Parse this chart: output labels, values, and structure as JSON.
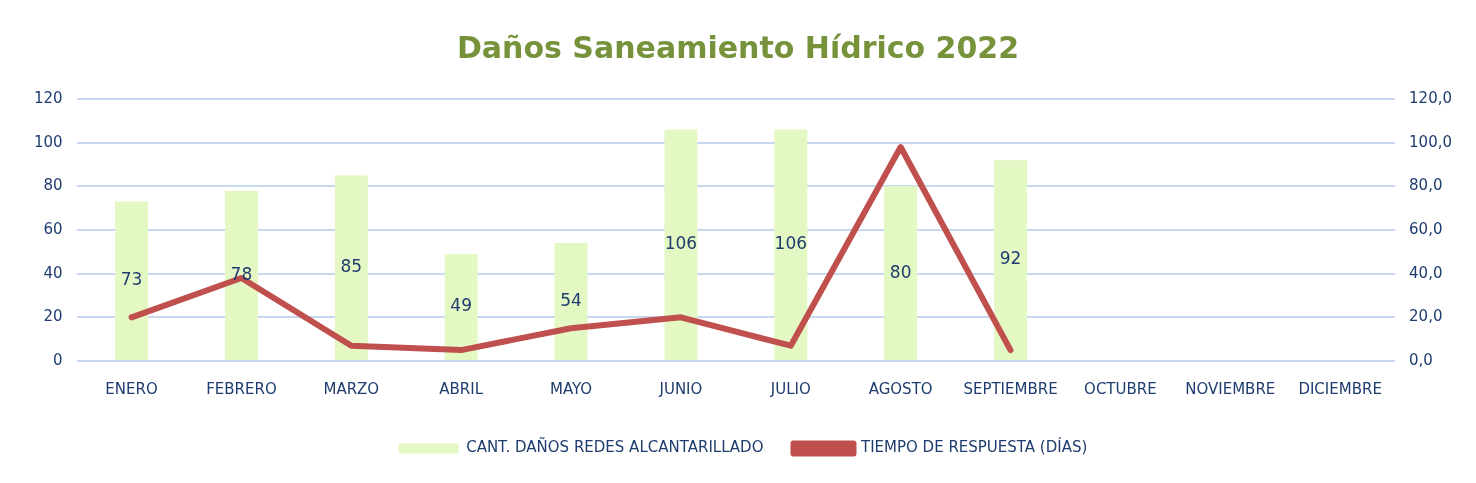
{
  "chart_data": {
    "type": "bar",
    "title": "Daños Saneamiento Hídrico 2022",
    "categories": [
      "ENERO",
      "FEBRERO",
      "MARZO",
      "ABRIL",
      "MAYO",
      "JUNIO",
      "JULIO",
      "AGOSTO",
      "SEPTIEMBRE",
      "OCTUBRE",
      "NOVIEMBRE",
      "DICIEMBRE"
    ],
    "series": [
      {
        "name": "CANT. DAÑOS REDES ALCANTARILLADO",
        "color": "#e4f8c4",
        "values": [
          73,
          78,
          85,
          49,
          54,
          106,
          106,
          80,
          92,
          null,
          null,
          null
        ],
        "value_labels": [
          "73",
          "78",
          "85",
          "49",
          "54",
          "106",
          "106",
          "80",
          "92",
          null,
          null,
          null
        ]
      },
      {
        "name": "TIEMPO DE RESPUESTA (DÍAS)",
        "type": "line",
        "axis": "y2",
        "color": "#c0504d",
        "values": [
          20,
          38,
          7,
          5,
          15,
          20,
          7,
          98,
          5,
          null,
          null,
          null
        ]
      }
    ],
    "ylim": [
      0,
      120
    ],
    "yticks": [
      0,
      20,
      40,
      60,
      80,
      100,
      120
    ],
    "y2lim": [
      0,
      120
    ],
    "y2ticks": [
      {
        "value": 0,
        "label": "0,0"
      },
      {
        "value": 20,
        "label": "20,0"
      },
      {
        "value": 40,
        "label": "40,0"
      },
      {
        "value": 60,
        "label": "60,0"
      },
      {
        "value": 80,
        "label": "80,0"
      },
      {
        "value": 100,
        "label": "100,0"
      },
      {
        "value": 120,
        "label": "120,0"
      }
    ],
    "grid": "y",
    "legend": "bottom",
    "marker": "none",
    "line_style": "solid"
  }
}
